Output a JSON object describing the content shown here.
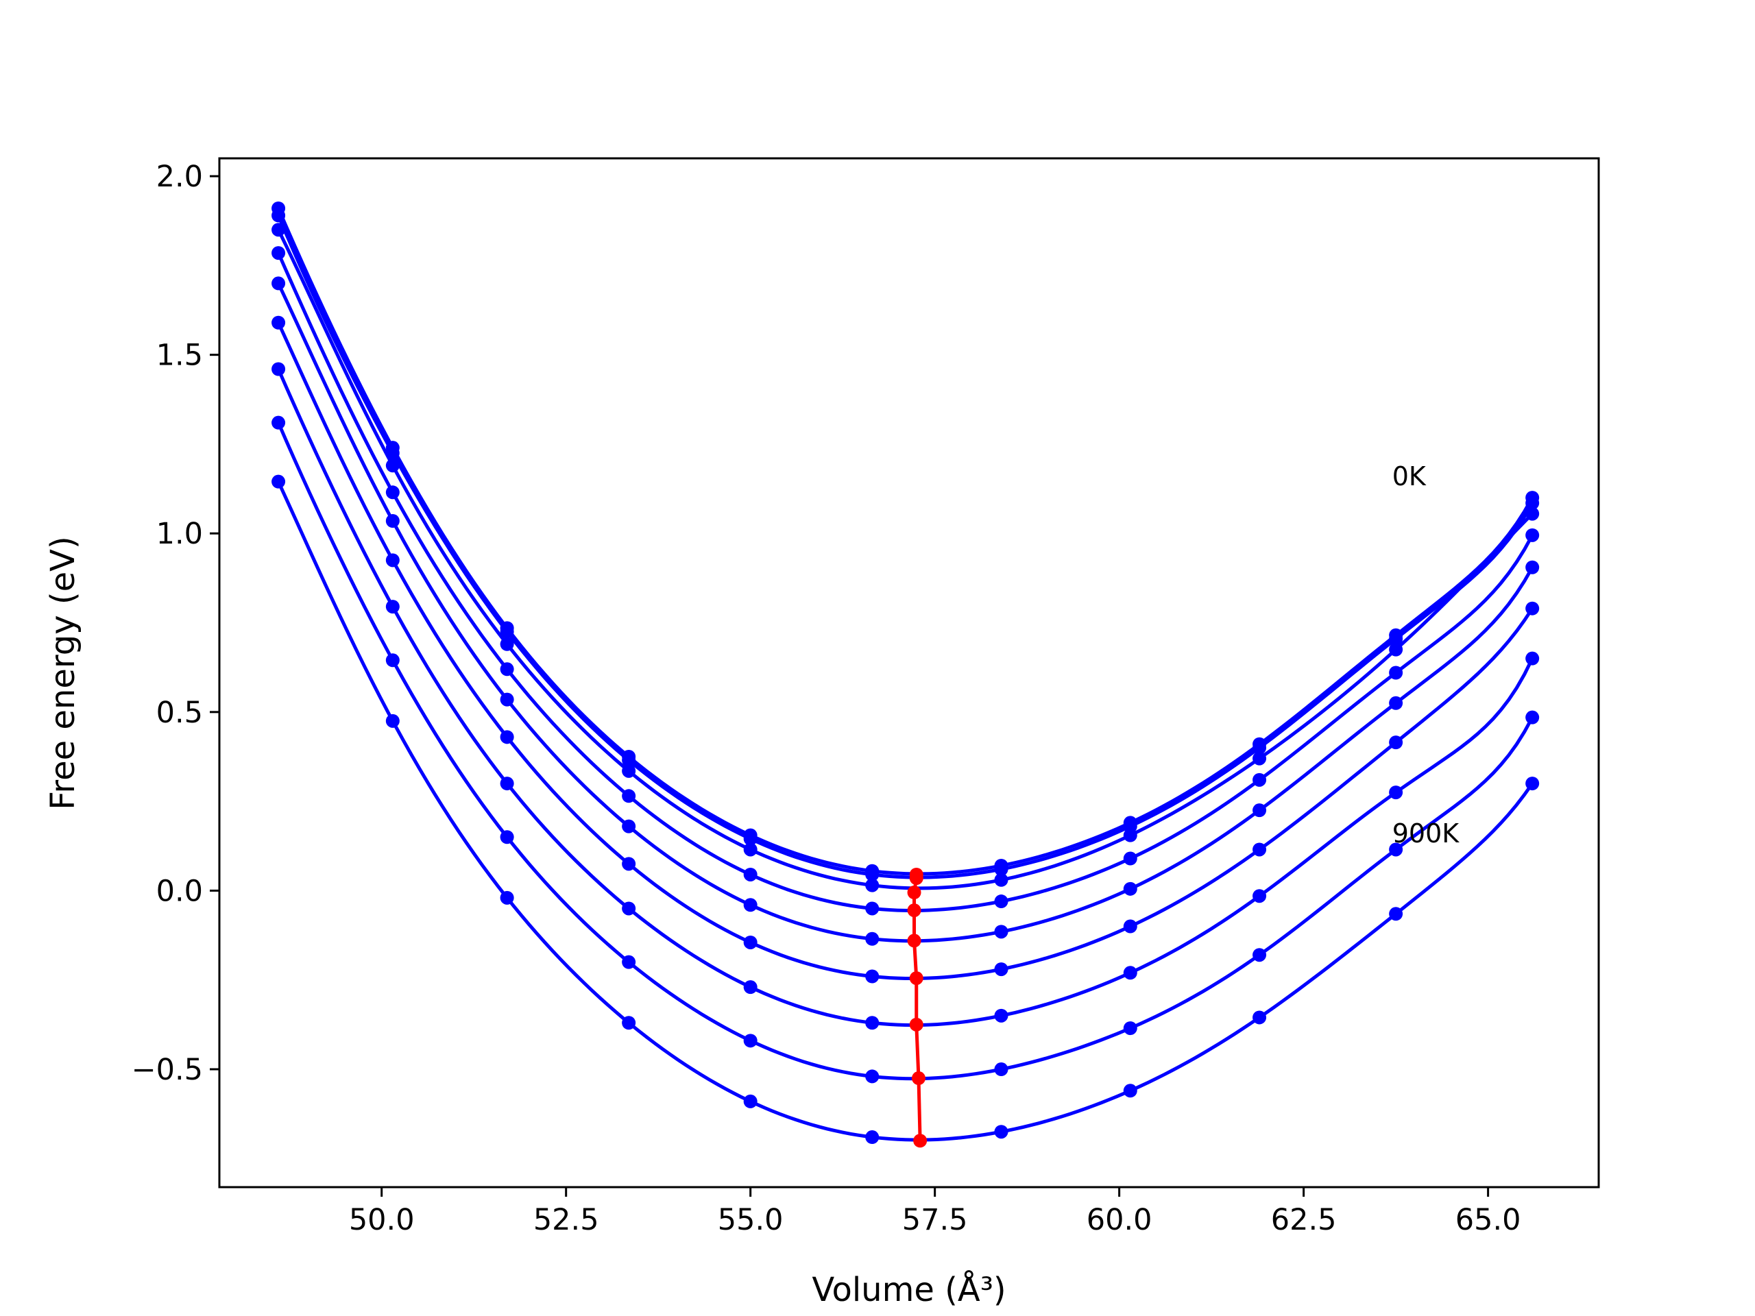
{
  "chart_data": {
    "type": "line",
    "title": "",
    "xlabel": "Volume (Å³)",
    "ylabel": "Free energy (eV)",
    "xlim": [
      47.8,
      66.5
    ],
    "ylim": [
      -0.83,
      2.05
    ],
    "xticks": [
      50.0,
      52.5,
      55.0,
      57.5,
      60.0,
      62.5,
      65.0
    ],
    "xtick_labels": [
      "50.0",
      "52.5",
      "55.0",
      "57.5",
      "60.0",
      "62.5",
      "65.0"
    ],
    "yticks": [
      -0.5,
      0.0,
      0.5,
      1.0,
      1.5,
      2.0
    ],
    "ytick_labels": [
      "−0.5",
      "0.0",
      "0.5",
      "1.0",
      "1.5",
      "2.0"
    ],
    "grid": false,
    "legend": "none",
    "colors": {
      "curves": "#0000ff",
      "minimum_path": "#ff0000"
    },
    "annotations": [
      {
        "text": "0K",
        "x": 63.7,
        "y": 1.16
      },
      {
        "text": "900K",
        "x": 63.7,
        "y": 0.16
      }
    ],
    "x": [
      48.6,
      50.15,
      51.7,
      53.35,
      55.0,
      56.65,
      58.4,
      60.15,
      61.9,
      63.75,
      65.6
    ],
    "series": [
      {
        "values": [
          1.91,
          1.24,
          0.735,
          0.375,
          0.155,
          0.055,
          0.07,
          0.19,
          0.41,
          0.715,
          1.1
        ]
      },
      {
        "values": [
          1.89,
          1.225,
          0.725,
          0.365,
          0.145,
          0.045,
          0.06,
          0.18,
          0.4,
          0.705,
          1.085
        ]
      },
      {
        "values": [
          1.85,
          1.19,
          0.69,
          0.335,
          0.115,
          0.015,
          0.03,
          0.155,
          0.37,
          0.675,
          1.055
        ]
      },
      {
        "values": [
          1.785,
          1.115,
          0.62,
          0.265,
          0.045,
          -0.05,
          -0.03,
          0.09,
          0.31,
          0.61,
          0.995
        ]
      },
      {
        "values": [
          1.7,
          1.035,
          0.535,
          0.18,
          -0.04,
          -0.135,
          -0.115,
          0.005,
          0.225,
          0.525,
          0.905
        ]
      },
      {
        "values": [
          1.59,
          0.925,
          0.43,
          0.075,
          -0.145,
          -0.24,
          -0.22,
          -0.1,
          0.115,
          0.415,
          0.79
        ]
      },
      {
        "values": [
          1.46,
          0.795,
          0.3,
          -0.05,
          -0.27,
          -0.37,
          -0.35,
          -0.23,
          -0.015,
          0.275,
          0.65
        ]
      },
      {
        "values": [
          1.31,
          0.645,
          0.15,
          -0.2,
          -0.42,
          -0.52,
          -0.5,
          -0.385,
          -0.18,
          0.115,
          0.485
        ]
      },
      {
        "values": [
          1.145,
          0.475,
          -0.02,
          -0.37,
          -0.59,
          -0.69,
          -0.675,
          -0.56,
          -0.355,
          -0.065,
          0.3
        ]
      }
    ],
    "minimum_path": {
      "x": [
        57.25,
        57.25,
        57.22,
        57.22,
        57.22,
        57.25,
        57.25,
        57.28,
        57.3
      ],
      "y": [
        0.045,
        0.035,
        -0.005,
        -0.055,
        -0.14,
        -0.245,
        -0.375,
        -0.525,
        -0.7
      ]
    }
  }
}
